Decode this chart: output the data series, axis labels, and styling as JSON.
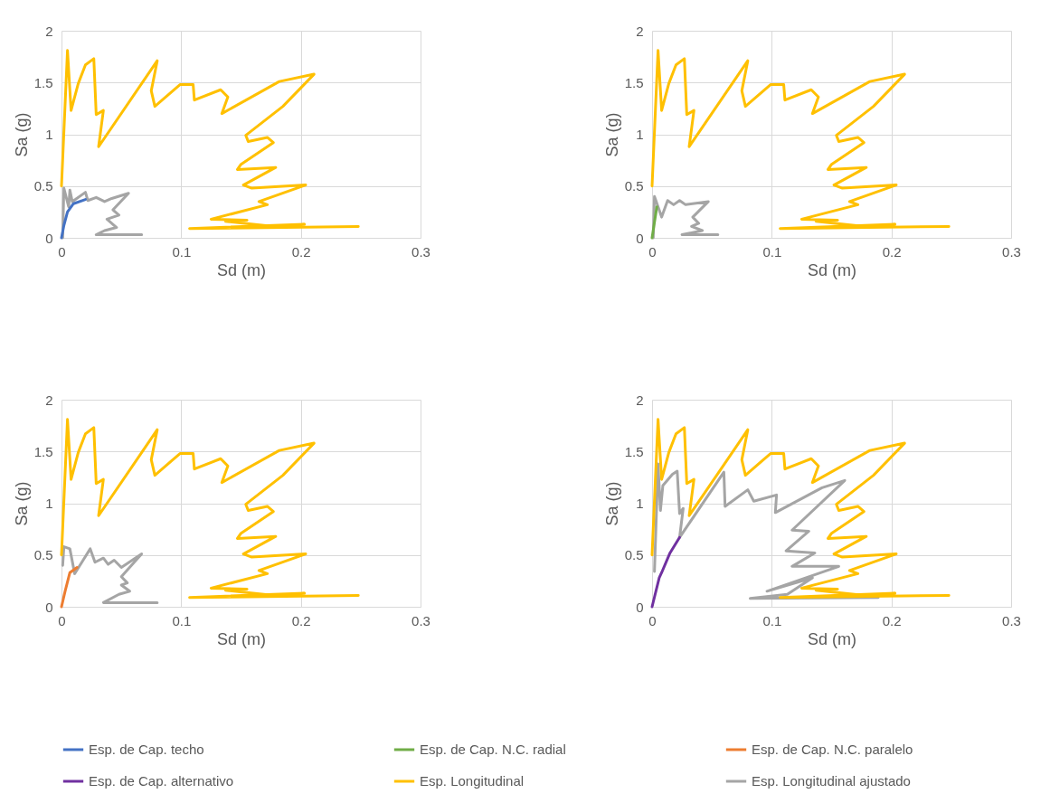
{
  "chart_data": [
    {
      "type": "line",
      "xlabel": "Sd (m)",
      "ylabel": "Sa (g)",
      "xlim": [
        0,
        0.3
      ],
      "xticks": [
        0,
        0.1,
        0.2,
        0.3
      ],
      "ylim": [
        0,
        2
      ],
      "yticks": [
        0,
        0.5,
        1,
        1.5,
        2
      ],
      "grid": true,
      "legend": "bottom",
      "series": [
        {
          "name": "Esp. de Cap. techo",
          "color": "#4472c4",
          "x": [
            0,
            0.002,
            0.005,
            0.01,
            0.02
          ],
          "values": [
            0,
            0.12,
            0.25,
            0.33,
            0.37
          ]
        },
        {
          "name": "Esp. Longitudinal",
          "color": "#ffc000",
          "x": [
            0,
            0.005,
            0.008,
            0.014,
            0.02,
            0.027,
            0.029,
            0.035,
            0.031,
            0.08,
            0.075,
            0.078,
            0.099,
            0.11,
            0.111,
            0.133,
            0.139,
            0.134,
            0.182,
            0.211,
            0.185,
            0.154,
            0.156,
            0.172,
            0.177,
            0.15,
            0.147,
            0.179,
            0.152,
            0.159,
            0.204,
            0.165,
            0.172,
            0.125,
            0.155,
            0.137,
            0.178,
            0.203,
            0.107,
            0.248
          ],
          "values": [
            0.5,
            1.81,
            1.23,
            1.49,
            1.67,
            1.73,
            1.19,
            1.23,
            0.88,
            1.71,
            1.42,
            1.27,
            1.48,
            1.48,
            1.33,
            1.43,
            1.36,
            1.2,
            1.51,
            1.58,
            1.27,
            0.99,
            0.93,
            0.97,
            0.92,
            0.71,
            0.66,
            0.68,
            0.51,
            0.48,
            0.51,
            0.35,
            0.32,
            0.18,
            0.17,
            0.16,
            0.11,
            0.13,
            0.09,
            0.11
          ]
        },
        {
          "name": "Esp. Longitudinal ajustado",
          "color": "#a5a5a5",
          "x": [
            0.001,
            0.002,
            0.006,
            0.007,
            0.009,
            0.02,
            0.022,
            0.029,
            0.036,
            0.042,
            0.056,
            0.043,
            0.048,
            0.038,
            0.046,
            0.036,
            0.029,
            0.067
          ],
          "values": [
            0,
            0.48,
            0.3,
            0.46,
            0.35,
            0.44,
            0.36,
            0.39,
            0.35,
            0.38,
            0.43,
            0.27,
            0.22,
            0.18,
            0.1,
            0.07,
            0.03,
            0.03
          ]
        }
      ]
    },
    {
      "type": "line",
      "xlabel": "Sd (m)",
      "ylabel": "Sa (g)",
      "xlim": [
        0,
        0.3
      ],
      "xticks": [
        0,
        0.1,
        0.2,
        0.3
      ],
      "ylim": [
        0,
        2
      ],
      "yticks": [
        0,
        0.5,
        1,
        1.5,
        2
      ],
      "grid": true,
      "legend": "bottom",
      "series": [
        {
          "name": "Esp. de Cap. N.C. radial",
          "color": "#70ad47",
          "x": [
            0,
            0.002,
            0.004
          ],
          "values": [
            0,
            0.15,
            0.3
          ]
        },
        {
          "name": "Esp. Longitudinal",
          "color": "#ffc000",
          "x": [
            0,
            0.005,
            0.008,
            0.014,
            0.02,
            0.027,
            0.029,
            0.035,
            0.031,
            0.08,
            0.075,
            0.078,
            0.099,
            0.11,
            0.111,
            0.133,
            0.139,
            0.134,
            0.182,
            0.211,
            0.185,
            0.154,
            0.156,
            0.172,
            0.177,
            0.15,
            0.147,
            0.179,
            0.152,
            0.159,
            0.204,
            0.165,
            0.172,
            0.125,
            0.155,
            0.137,
            0.178,
            0.203,
            0.107,
            0.248
          ],
          "values": [
            0.5,
            1.81,
            1.23,
            1.49,
            1.67,
            1.73,
            1.19,
            1.23,
            0.88,
            1.71,
            1.42,
            1.27,
            1.48,
            1.48,
            1.33,
            1.43,
            1.36,
            1.2,
            1.51,
            1.58,
            1.27,
            0.99,
            0.93,
            0.97,
            0.92,
            0.71,
            0.66,
            0.68,
            0.51,
            0.48,
            0.51,
            0.35,
            0.32,
            0.18,
            0.17,
            0.16,
            0.11,
            0.13,
            0.09,
            0.11
          ]
        },
        {
          "name": "Esp. Longitudinal ajustado",
          "color": "#a5a5a5",
          "x": [
            0.001,
            0.002,
            0.008,
            0.013,
            0.018,
            0.023,
            0.028,
            0.047,
            0.034,
            0.039,
            0.033,
            0.042,
            0.025,
            0.055
          ],
          "values": [
            0,
            0.4,
            0.2,
            0.36,
            0.32,
            0.36,
            0.32,
            0.35,
            0.2,
            0.14,
            0.11,
            0.07,
            0.03,
            0.03
          ]
        }
      ]
    },
    {
      "type": "line",
      "xlabel": "Sd (m)",
      "ylabel": "Sa (g)",
      "xlim": [
        0,
        0.3
      ],
      "xticks": [
        0,
        0.1,
        0.2,
        0.3
      ],
      "ylim": [
        0,
        2
      ],
      "yticks": [
        0,
        0.5,
        1,
        1.5,
        2
      ],
      "grid": true,
      "legend": "bottom",
      "series": [
        {
          "name": "Esp. de Cap. N.C. paralelo",
          "color": "#ed7d31",
          "x": [
            0,
            0.003,
            0.007,
            0.013
          ],
          "values": [
            0,
            0.15,
            0.33,
            0.38
          ]
        },
        {
          "name": "Esp. Longitudinal",
          "color": "#ffc000",
          "x": [
            0,
            0.005,
            0.008,
            0.014,
            0.02,
            0.027,
            0.029,
            0.035,
            0.031,
            0.08,
            0.075,
            0.078,
            0.099,
            0.11,
            0.111,
            0.133,
            0.139,
            0.134,
            0.182,
            0.211,
            0.185,
            0.154,
            0.156,
            0.172,
            0.177,
            0.15,
            0.147,
            0.179,
            0.152,
            0.159,
            0.204,
            0.165,
            0.172,
            0.125,
            0.155,
            0.137,
            0.178,
            0.203,
            0.107,
            0.248
          ],
          "values": [
            0.5,
            1.81,
            1.23,
            1.49,
            1.67,
            1.73,
            1.19,
            1.23,
            0.88,
            1.71,
            1.42,
            1.27,
            1.48,
            1.48,
            1.33,
            1.43,
            1.36,
            1.2,
            1.51,
            1.58,
            1.27,
            0.99,
            0.93,
            0.97,
            0.92,
            0.71,
            0.66,
            0.68,
            0.51,
            0.48,
            0.51,
            0.35,
            0.32,
            0.18,
            0.17,
            0.16,
            0.11,
            0.13,
            0.09,
            0.11
          ]
        },
        {
          "name": "Esp. Longitudinal ajustado",
          "color": "#a5a5a5",
          "x": [
            0.001,
            0.002,
            0.007,
            0.011,
            0.017,
            0.024,
            0.028,
            0.035,
            0.039,
            0.044,
            0.05,
            0.067,
            0.05,
            0.055,
            0.05,
            0.057,
            0.048,
            0.035,
            0.08
          ],
          "values": [
            0.4,
            0.58,
            0.56,
            0.32,
            0.43,
            0.56,
            0.43,
            0.47,
            0.41,
            0.45,
            0.38,
            0.51,
            0.29,
            0.23,
            0.21,
            0.15,
            0.12,
            0.04,
            0.04
          ]
        }
      ]
    },
    {
      "type": "line",
      "xlabel": "Sd (m)",
      "ylabel": "Sa (g)",
      "xlim": [
        0,
        0.3
      ],
      "xticks": [
        0,
        0.1,
        0.2,
        0.3
      ],
      "ylim": [
        0,
        2
      ],
      "yticks": [
        0,
        0.5,
        1,
        1.5,
        2
      ],
      "grid": true,
      "legend": "bottom",
      "series": [
        {
          "name": "Esp. de Cap. alternativo",
          "color": "#7030a0",
          "x": [
            0,
            0.006,
            0.008,
            0.015,
            0.023
          ],
          "values": [
            0,
            0.28,
            0.33,
            0.52,
            0.67
          ]
        },
        {
          "name": "Esp. Longitudinal",
          "color": "#ffc000",
          "x": [
            0,
            0.005,
            0.008,
            0.014,
            0.02,
            0.027,
            0.029,
            0.035,
            0.031,
            0.08,
            0.075,
            0.078,
            0.099,
            0.11,
            0.111,
            0.133,
            0.139,
            0.134,
            0.182,
            0.211,
            0.185,
            0.154,
            0.156,
            0.172,
            0.177,
            0.15,
            0.147,
            0.179,
            0.152,
            0.159,
            0.204,
            0.165,
            0.172,
            0.125,
            0.155,
            0.137,
            0.178,
            0.203,
            0.107,
            0.248
          ],
          "values": [
            0.5,
            1.81,
            1.23,
            1.49,
            1.67,
            1.73,
            1.19,
            1.23,
            0.88,
            1.71,
            1.42,
            1.27,
            1.48,
            1.48,
            1.33,
            1.43,
            1.36,
            1.2,
            1.51,
            1.58,
            1.27,
            0.99,
            0.93,
            0.97,
            0.92,
            0.71,
            0.66,
            0.68,
            0.51,
            0.48,
            0.51,
            0.35,
            0.32,
            0.18,
            0.17,
            0.16,
            0.11,
            0.13,
            0.09,
            0.11
          ]
        },
        {
          "name": "Esp. Longitudinal ajustado",
          "color": "#a5a5a5",
          "x": [
            0.002,
            0.005,
            0.007,
            0.009,
            0.017,
            0.021,
            0.023,
            0.026,
            0.023,
            0.06,
            0.061,
            0.08,
            0.085,
            0.104,
            0.103,
            0.142,
            0.161,
            0.117,
            0.131,
            0.112,
            0.136,
            0.117,
            0.156,
            0.096,
            0.134,
            0.113,
            0.082,
            0.189
          ],
          "values": [
            0.34,
            1.38,
            0.93,
            1.17,
            1.28,
            1.31,
            0.9,
            0.95,
            0.67,
            1.3,
            0.97,
            1.13,
            1.02,
            1.08,
            0.91,
            1.15,
            1.22,
            0.74,
            0.73,
            0.54,
            0.52,
            0.39,
            0.39,
            0.15,
            0.28,
            0.12,
            0.08,
            0.09
          ]
        }
      ]
    }
  ]
}
